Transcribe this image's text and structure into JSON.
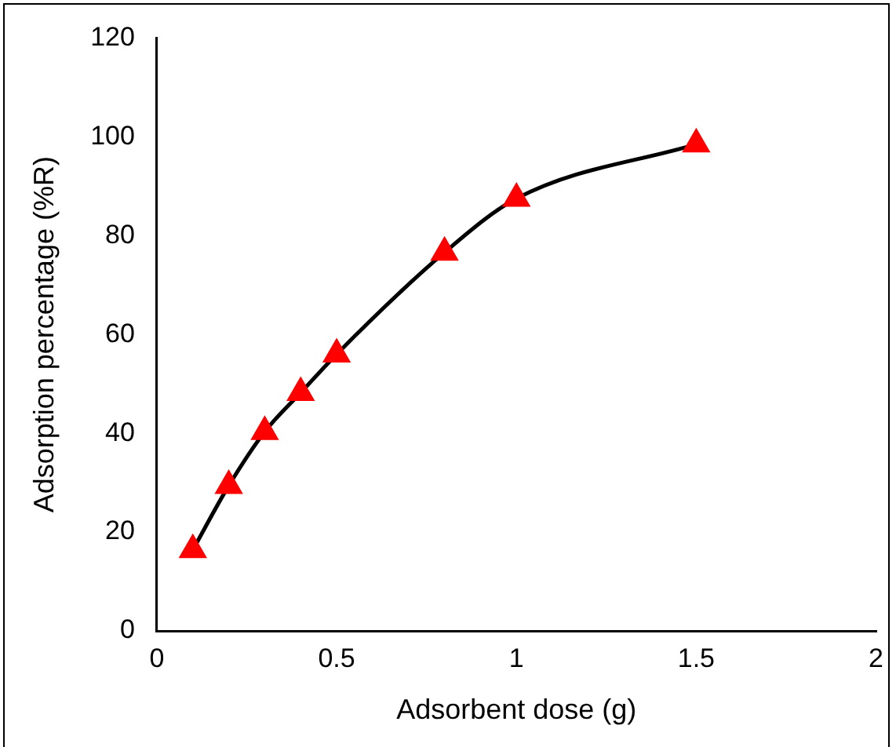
{
  "chart_data": {
    "type": "line",
    "xlabel": "Adsorbent dose (g)",
    "ylabel": "Adsorption percentage (%R)",
    "x": [
      0.1,
      0.2,
      0.3,
      0.4,
      0.5,
      0.8,
      1.0,
      1.5
    ],
    "series": [
      {
        "color": "#000000",
        "colors": [
          "#ff0000",
          "#ff0000",
          "#ff0000",
          "#ff0000",
          "#ff0000",
          "#ff0000",
          "#ff0000",
          "#ff0000"
        ],
        "values": [
          16.4,
          29.4,
          40.3,
          48.2,
          56,
          76.6,
          87.5,
          98.5
        ]
      }
    ],
    "xlim": [
      0,
      2
    ],
    "xticks": [
      0,
      0.5,
      1,
      1.5,
      2
    ],
    "ylim": [
      0,
      120
    ],
    "yticks": [
      0,
      20,
      40,
      60,
      80,
      100,
      120
    ],
    "grid": false,
    "legend": false,
    "marker": "triangle",
    "line_style": "solid"
  }
}
